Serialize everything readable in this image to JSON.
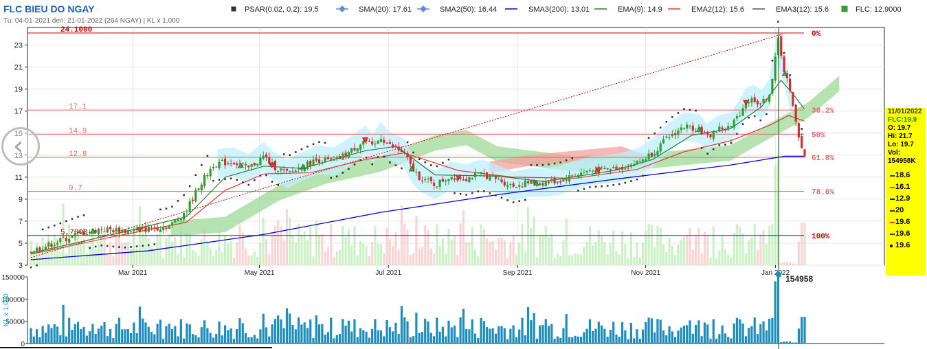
{
  "header": {
    "title": "FLC BIEU DO NGAY",
    "subtitle": "Tu: 04-01-2021 den: 21-01-2022 (264 NGAY) | KL x 1,000"
  },
  "legend": [
    {
      "label": "PSAR(0.02, 0.2): 19.5",
      "color": "#333333",
      "marker": "square"
    },
    {
      "label": "SMA(20): 17.61",
      "color": "#5b8fd6",
      "marker": "diamond"
    },
    {
      "label": "SMA2(50): 16.44",
      "color": "#5b8fd6",
      "marker": "diamond"
    },
    {
      "label": "SMA3(200): 13.01",
      "color": "#0000cc",
      "marker": "line"
    },
    {
      "label": "EMA(9): 14.9",
      "color": "#2e7d32",
      "marker": "line"
    },
    {
      "label": "EMA2(12): 15.6",
      "color": "#e53935",
      "marker": "line"
    },
    {
      "label": "EMA3(12): 15.6",
      "color": "#555555",
      "marker": "line"
    },
    {
      "label": "FLC: 12.9000",
      "color": "#2e9e2e",
      "marker": "square"
    }
  ],
  "info": {
    "date": "11/01/2022",
    "flc": "FLC:19.9",
    "open": "O: 19.7",
    "high": "Hi: 21.7",
    "low": "Lo: 19.7",
    "vol_label": "Vol:",
    "vol": "154958K",
    "values": [
      {
        "text": "18.6",
        "color": "#333333"
      },
      {
        "text": "16.1",
        "color": "#e53935"
      },
      {
        "text": "12.9",
        "color": "#0000cc"
      },
      {
        "text": "20",
        "color": "#333333"
      },
      {
        "text": "19.6",
        "color": "#e53935"
      },
      {
        "text": "19.6",
        "color": "#333333"
      },
      {
        "text": "19.6",
        "color": "#000000"
      }
    ]
  },
  "chart_data": [
    {
      "type": "candlestick",
      "title": "FLC BIEU DO NGAY",
      "ylim": [
        3,
        24.6
      ],
      "yticks": [
        3,
        5,
        7,
        9,
        11,
        13,
        15,
        17,
        19,
        21,
        23
      ],
      "x_labels": [
        {
          "label": "Mar 2021",
          "t": 0.131
        },
        {
          "label": "May 2021",
          "t": 0.294
        },
        {
          "label": "Jul 2021",
          "t": 0.46
        },
        {
          "label": "Sep 2021",
          "t": 0.626
        },
        {
          "label": "Nov 2021",
          "t": 0.791
        },
        {
          "label": "Jan 2022",
          "t": 0.958
        }
      ],
      "fib_levels": [
        {
          "value": 24.1,
          "label": "24.1000",
          "pct": "0%"
        },
        {
          "value": 17.1,
          "label": "17.1",
          "pct": "38.2%"
        },
        {
          "value": 14.9,
          "label": "14.9",
          "pct": "50%"
        },
        {
          "value": 12.8,
          "label": "12.8",
          "pct": "61.8%"
        },
        {
          "value": 9.7,
          "label": "9.7",
          "pct": "78.6%"
        },
        {
          "value": 5.7,
          "label": "5.7000",
          "pct": "100%"
        }
      ],
      "price_path": [
        [
          0.0,
          4.3
        ],
        [
          0.03,
          5.0
        ],
        [
          0.06,
          5.8
        ],
        [
          0.09,
          6.3
        ],
        [
          0.12,
          6.1
        ],
        [
          0.15,
          6.3
        ],
        [
          0.18,
          6.6
        ],
        [
          0.2,
          8.0
        ],
        [
          0.215,
          10.0
        ],
        [
          0.235,
          12.2
        ],
        [
          0.26,
          12.4
        ],
        [
          0.28,
          11.8
        ],
        [
          0.3,
          12.9
        ],
        [
          0.31,
          12.1
        ],
        [
          0.33,
          11.3
        ],
        [
          0.35,
          12.0
        ],
        [
          0.37,
          12.6
        ],
        [
          0.39,
          12.4
        ],
        [
          0.41,
          13.3
        ],
        [
          0.43,
          14.4
        ],
        [
          0.44,
          13.6
        ],
        [
          0.45,
          14.7
        ],
        [
          0.46,
          13.9
        ],
        [
          0.48,
          13.2
        ],
        [
          0.49,
          11.8
        ],
        [
          0.5,
          11.0
        ],
        [
          0.52,
          10.3
        ],
        [
          0.54,
          11.1
        ],
        [
          0.56,
          10.9
        ],
        [
          0.58,
          11.3
        ],
        [
          0.6,
          10.8
        ],
        [
          0.62,
          10.2
        ],
        [
          0.64,
          10.5
        ],
        [
          0.66,
          10.5
        ],
        [
          0.68,
          10.7
        ],
        [
          0.7,
          11.2
        ],
        [
          0.72,
          11.6
        ],
        [
          0.74,
          11.7
        ],
        [
          0.76,
          11.9
        ],
        [
          0.78,
          12.3
        ],
        [
          0.8,
          13.2
        ],
        [
          0.82,
          14.6
        ],
        [
          0.84,
          15.6
        ],
        [
          0.86,
          15.4
        ],
        [
          0.87,
          14.6
        ],
        [
          0.885,
          15.4
        ],
        [
          0.9,
          15.5
        ],
        [
          0.91,
          16.6
        ],
        [
          0.92,
          17.8
        ],
        [
          0.93,
          18.1
        ],
        [
          0.94,
          17.6
        ],
        [
          0.95,
          18.6
        ],
        [
          0.955,
          20.4
        ],
        [
          0.962,
          23.8
        ],
        [
          0.968,
          20.9
        ],
        [
          0.974,
          19.6
        ],
        [
          0.985,
          15.6
        ],
        [
          0.995,
          12.9
        ]
      ],
      "indicators": {
        "ema9": [
          [
            0.0,
            4.1
          ],
          [
            0.1,
            5.7
          ],
          [
            0.2,
            7.4
          ],
          [
            0.25,
            11.0
          ],
          [
            0.3,
            12.0
          ],
          [
            0.35,
            11.8
          ],
          [
            0.43,
            13.4
          ],
          [
            0.47,
            13.8
          ],
          [
            0.52,
            11.2
          ],
          [
            0.6,
            11.1
          ],
          [
            0.66,
            10.6
          ],
          [
            0.75,
            11.6
          ],
          [
            0.8,
            12.6
          ],
          [
            0.85,
            14.8
          ],
          [
            0.9,
            15.4
          ],
          [
            0.94,
            17.4
          ],
          [
            0.965,
            19.8
          ],
          [
            0.98,
            18.6
          ],
          [
            0.995,
            17.2
          ]
        ],
        "ema12": [
          [
            0.0,
            4.0
          ],
          [
            0.1,
            5.5
          ],
          [
            0.2,
            6.9
          ],
          [
            0.25,
            9.8
          ],
          [
            0.3,
            11.3
          ],
          [
            0.36,
            11.4
          ],
          [
            0.43,
            12.6
          ],
          [
            0.48,
            13.2
          ],
          [
            0.55,
            11.6
          ],
          [
            0.62,
            11.0
          ],
          [
            0.7,
            10.9
          ],
          [
            0.78,
            11.7
          ],
          [
            0.84,
            13.3
          ],
          [
            0.9,
            14.3
          ],
          [
            0.95,
            15.7
          ],
          [
            0.975,
            16.6
          ],
          [
            0.995,
            16.1
          ]
        ],
        "sma200": [
          [
            0.0,
            3.5
          ],
          [
            0.15,
            4.3
          ],
          [
            0.3,
            5.8
          ],
          [
            0.45,
            7.8
          ],
          [
            0.6,
            9.4
          ],
          [
            0.75,
            10.8
          ],
          [
            0.9,
            12.1
          ],
          [
            0.97,
            12.9
          ],
          [
            0.995,
            12.9
          ]
        ],
        "trend": [
          [
            0.0,
            3.7
          ],
          [
            0.967,
            24.0
          ]
        ]
      },
      "cloud_red": [
        [
          0.59,
          11.4
        ],
        [
          0.64,
          12.0
        ],
        [
          0.7,
          12.4
        ],
        [
          0.76,
          12.8
        ],
        [
          0.79,
          12.0
        ]
      ],
      "cloud_green": [
        [
          0.18,
          5.6
        ],
        [
          0.25,
          6.0
        ],
        [
          0.32,
          8.9
        ],
        [
          0.38,
          10.4
        ],
        [
          0.45,
          11.5
        ],
        [
          0.52,
          13.4
        ],
        [
          0.56,
          13.9
        ],
        [
          0.6,
          12.4
        ],
        [
          0.7,
          11.5
        ],
        [
          0.8,
          11.8
        ],
        [
          0.9,
          12.5
        ],
        [
          0.95,
          14.5
        ],
        [
          1.0,
          16.4
        ],
        [
          1.04,
          18.8
        ]
      ]
    },
    {
      "type": "bar",
      "title": "",
      "ylabel": "KL x 1,000",
      "ylim": [
        0,
        150000
      ],
      "yticks": [
        0,
        50000,
        100000,
        150000
      ],
      "ytick_labels": [
        "0",
        "50000",
        "100000",
        "150000"
      ],
      "peak_label": "154958",
      "peak_value": 154958
    }
  ]
}
